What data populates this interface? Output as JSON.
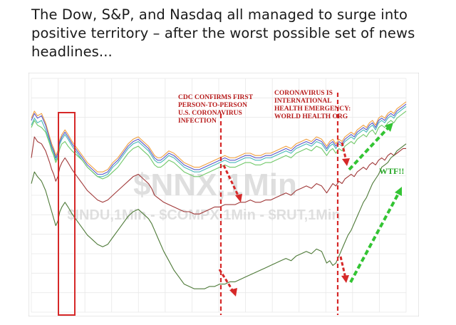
{
  "caption": {
    "text": "The Dow, S&P, and Nasdaq all managed to surge into positive territory – after the worst possible set of news headlines..."
  },
  "chart_data": {
    "type": "line",
    "watermark_main": "$NNX,1Min",
    "watermark_sub": "$INDU,1Min - $COMPX,1Min - $RUT,1Min",
    "annotations": [
      {
        "lines": [
          "CDC CONFIRMS FIRST",
          "PERSON-TO-PERSON",
          "U.S. CORONAVIRUS",
          "INFECTION"
        ]
      },
      {
        "lines": [
          "CORONAVIRUS IS",
          "INTERNATIONAL",
          "HEALTH EMERGENCY:",
          "WORLD HEALTH ORG"
        ]
      },
      {
        "lines": [
          "WTF!!"
        ]
      }
    ],
    "x": [
      0,
      3,
      6,
      10,
      14,
      18,
      20,
      22,
      24,
      26,
      28,
      30,
      33,
      36,
      40,
      45,
      50,
      55,
      60,
      65,
      70,
      75,
      80,
      85,
      90,
      95,
      100,
      105,
      110,
      115,
      118,
      121,
      124,
      127,
      130,
      135,
      140,
      145,
      150,
      155,
      160,
      165,
      170,
      175,
      180,
      185,
      190,
      195,
      200,
      205,
      210,
      215,
      220,
      225,
      230,
      235,
      240,
      245,
      250,
      255,
      260,
      265,
      270,
      275,
      280,
      285,
      290,
      293,
      296,
      299,
      302,
      305,
      308,
      311,
      314,
      317,
      320,
      323,
      326,
      329,
      332,
      335,
      338,
      341,
      344,
      347,
      350,
      353,
      356,
      359,
      362,
      365,
      368
    ],
    "series": [
      {
        "color": "#f0a040",
        "values": [
          83,
          86,
          84,
          85,
          81,
          75,
          72,
          70,
          67,
          69,
          74,
          76,
          78,
          76,
          73,
          70,
          67,
          64,
          62,
          60,
          60,
          61,
          64,
          66,
          69,
          72,
          74,
          75,
          73,
          71,
          69,
          67,
          66,
          66,
          67,
          69,
          68,
          66,
          64,
          63,
          62,
          62,
          63,
          64,
          65,
          66,
          67,
          66,
          66,
          67,
          68,
          68,
          67,
          67,
          68,
          68,
          69,
          70,
          71,
          70,
          72,
          73,
          74,
          73,
          75,
          74,
          71,
          73,
          74,
          72,
          74,
          73,
          75,
          76,
          77,
          76,
          78,
          79,
          80,
          79,
          81,
          82,
          80,
          83,
          84,
          83,
          85,
          86,
          85,
          87,
          88,
          89,
          90
        ]
      },
      {
        "color": "#5a58c8",
        "values": [
          82,
          85,
          83,
          84,
          80,
          74,
          71,
          69,
          66,
          68,
          73,
          75,
          77,
          75,
          72,
          69,
          66,
          63,
          61,
          59,
          59,
          60,
          63,
          65,
          68,
          71,
          73,
          74,
          72,
          70,
          68,
          66,
          65,
          65,
          66,
          68,
          67,
          65,
          63,
          62,
          61,
          61,
          62,
          63,
          64,
          65,
          66,
          65,
          65,
          66,
          67,
          67,
          66,
          66,
          67,
          67,
          68,
          69,
          70,
          69,
          71,
          72,
          73,
          72,
          74,
          73,
          70,
          72,
          73,
          71,
          73,
          72,
          74,
          75,
          76,
          75,
          77,
          78,
          79,
          78,
          80,
          81,
          79,
          82,
          83,
          82,
          84,
          85,
          84,
          86,
          87,
          88,
          89
        ]
      },
      {
        "color": "#48b8b8",
        "values": [
          80,
          83,
          81,
          82,
          78,
          73,
          70,
          68,
          65,
          67,
          72,
          74,
          76,
          74,
          71,
          68,
          65,
          62,
          60,
          58,
          58,
          59,
          62,
          64,
          67,
          70,
          72,
          73,
          71,
          69,
          67,
          65,
          64,
          64,
          65,
          67,
          66,
          64,
          62,
          61,
          60,
          60,
          61,
          62,
          63,
          64,
          65,
          64,
          64,
          65,
          66,
          66,
          65,
          65,
          66,
          66,
          67,
          68,
          69,
          68,
          70,
          71,
          72,
          71,
          73,
          72,
          69,
          71,
          72,
          70,
          72,
          71,
          73,
          74,
          75,
          74,
          76,
          77,
          78,
          77,
          79,
          80,
          78,
          81,
          82,
          81,
          83,
          84,
          83,
          85,
          86,
          87,
          88
        ]
      },
      {
        "color": "#70c868",
        "values": [
          79,
          82,
          80,
          79,
          77,
          72,
          69,
          67,
          64,
          66,
          70,
          72,
          73,
          71,
          69,
          67,
          65,
          62,
          60,
          58,
          57,
          58,
          60,
          62,
          65,
          68,
          70,
          71,
          69,
          67,
          65,
          63,
          62,
          62,
          63,
          65,
          64,
          62,
          60,
          59,
          58,
          58,
          59,
          60,
          61,
          62,
          63,
          62,
          62,
          63,
          64,
          64,
          63,
          63,
          64,
          64,
          65,
          66,
          67,
          66,
          68,
          69,
          70,
          69,
          71,
          70,
          67,
          69,
          70,
          68,
          70,
          69,
          71,
          72,
          73,
          72,
          74,
          75,
          76,
          75,
          77,
          78,
          76,
          79,
          80,
          79,
          81,
          82,
          81,
          83,
          84,
          85,
          86
        ]
      },
      {
        "color": "#a03838",
        "values": [
          66,
          75,
          73,
          72,
          69,
          64,
          61,
          59,
          56,
          58,
          62,
          64,
          66,
          64,
          61,
          58,
          55,
          52,
          50,
          48,
          47,
          48,
          50,
          52,
          54,
          56,
          58,
          59,
          57,
          55,
          53,
          50,
          49,
          48,
          47,
          46,
          45,
          44,
          43,
          43,
          42,
          42,
          43,
          44,
          45,
          45,
          46,
          46,
          46,
          47,
          47,
          48,
          47,
          47,
          48,
          48,
          49,
          50,
          51,
          50,
          52,
          53,
          54,
          53,
          55,
          54,
          51,
          53,
          55,
          54,
          56,
          55,
          57,
          58,
          59,
          58,
          60,
          61,
          62,
          61,
          63,
          64,
          63,
          65,
          66,
          65,
          67,
          68,
          67,
          68,
          69,
          70,
          70
        ]
      },
      {
        "color": "#4e7a38",
        "values": [
          55,
          60,
          58,
          56,
          52,
          46,
          43,
          40,
          37,
          39,
          43,
          45,
          47,
          45,
          42,
          39,
          36,
          33,
          31,
          29,
          28,
          29,
          32,
          35,
          38,
          41,
          43,
          44,
          42,
          40,
          38,
          35,
          32,
          29,
          26,
          22,
          18,
          15,
          12,
          11,
          10,
          10,
          10,
          11,
          11,
          12,
          12,
          13,
          13,
          14,
          15,
          16,
          17,
          18,
          19,
          20,
          21,
          22,
          23,
          22,
          24,
          25,
          26,
          25,
          27,
          26,
          21,
          22,
          20,
          21,
          24,
          27,
          30,
          33,
          35,
          38,
          41,
          44,
          47,
          49,
          52,
          55,
          57,
          59,
          62,
          63,
          64,
          66,
          67,
          69,
          70,
          71,
          72
        ]
      }
    ],
    "grid": true,
    "legend": "none"
  }
}
